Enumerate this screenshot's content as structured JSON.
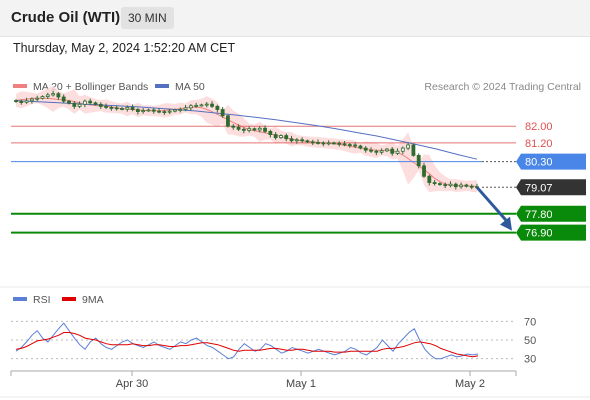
{
  "header": {
    "title": "Crude Oil (WTI)",
    "interval": "30 MIN",
    "datetime": "Thursday, May 2, 2024 1:52:20 AM CET"
  },
  "colors": {
    "bollinger_line": "#f08080",
    "bollinger_fill": "#fdd8d8",
    "ma50": "#5470c0",
    "resistance": "#e05050",
    "pivot": "#4a86e8",
    "current": "#333333",
    "support": "#0a8a0a",
    "arrow": "#2e5a9c",
    "rsi": "#5b7fd6",
    "rsi_ma": "#e00000",
    "bull_candle": "#ffffff",
    "bear_candle": "#2f6b2f"
  },
  "chart_data": [
    {
      "type": "candlestick",
      "legend": [
        "MA 20 + Bollinger Bands",
        "MA 50"
      ],
      "legend_placement": "top-left",
      "credit": "Research © 2024 Trading Central",
      "x_ticks": [
        "Apr 30",
        "May 1",
        "May 2"
      ],
      "levels": [
        {
          "label": "82.00",
          "value": 82.0,
          "kind": "resistance"
        },
        {
          "label": "81.20",
          "value": 81.2,
          "kind": "resistance"
        },
        {
          "label": "80.30",
          "value": 80.3,
          "kind": "pivot"
        },
        {
          "label": "79.07",
          "value": 79.07,
          "kind": "current"
        },
        {
          "label": "77.80",
          "value": 77.8,
          "kind": "support"
        },
        {
          "label": "76.90",
          "value": 76.9,
          "kind": "support"
        }
      ],
      "ylim": [
        76.4,
        83.4
      ],
      "price_series": [
        83.18,
        83.15,
        83.22,
        83.3,
        83.34,
        83.42,
        83.5,
        83.56,
        83.4,
        83.2,
        83.1,
        82.95,
        83.05,
        83.2,
        83.12,
        83.05,
        82.95,
        82.9,
        82.88,
        82.85,
        82.82,
        82.9,
        82.8,
        82.7,
        82.75,
        82.78,
        82.72,
        82.7,
        82.68,
        82.72,
        82.78,
        82.8,
        82.88,
        82.98,
        83.0,
        83.02,
        83.06,
        82.95,
        82.8,
        82.5,
        82.0,
        81.95,
        81.85,
        81.8,
        81.88,
        81.82,
        81.9,
        81.75,
        81.6,
        81.45,
        81.55,
        81.4,
        81.3,
        81.35,
        81.3,
        81.25,
        81.22,
        81.2,
        81.18,
        81.2,
        81.18,
        81.15,
        81.12,
        81.1,
        81.05,
        80.95,
        80.85,
        80.8,
        80.75,
        80.82,
        80.9,
        80.7,
        80.8,
        80.95,
        81.1,
        80.6,
        80.1,
        79.6,
        79.3,
        79.25,
        79.2,
        79.15,
        79.22,
        79.1,
        79.18,
        79.12,
        79.1,
        79.07
      ],
      "ma50": [
        83.22,
        83.18,
        83.13,
        83.08,
        83.03,
        82.98,
        82.93,
        82.87,
        82.8,
        82.73,
        82.63,
        82.53,
        82.42,
        82.3,
        82.17,
        82.03,
        81.87,
        81.7,
        81.53,
        81.33,
        81.12,
        80.9,
        80.65,
        80.42
      ],
      "ma20_band_width": 0.22
    },
    {
      "type": "line",
      "legend": [
        "RSI",
        "9MA"
      ],
      "legend_placement": "top-left",
      "y_ticks": [
        "70",
        "50",
        "30"
      ],
      "ylim": [
        20,
        80
      ],
      "rsi": [
        38,
        42,
        48,
        55,
        60,
        52,
        48,
        55,
        62,
        68,
        60,
        52,
        45,
        40,
        48,
        52,
        46,
        42,
        40,
        44,
        48,
        50,
        46,
        44,
        42,
        45,
        48,
        44,
        42,
        40,
        44,
        48,
        46,
        50,
        52,
        48,
        44,
        42,
        38,
        34,
        30,
        32,
        40,
        46,
        42,
        38,
        40,
        46,
        44,
        40,
        36,
        38,
        42,
        40,
        38,
        36,
        38,
        40,
        38,
        36,
        34,
        36,
        38,
        42,
        40,
        36,
        34,
        38,
        42,
        50,
        44,
        38,
        46,
        52,
        58,
        62,
        50,
        40,
        34,
        30,
        30,
        32,
        34,
        32,
        33,
        35,
        34,
        35
      ],
      "rsi_9ma": [
        40,
        41,
        43,
        46,
        49,
        50,
        51,
        53,
        55,
        58,
        58,
        57,
        55,
        52,
        51,
        50,
        48,
        46,
        45,
        45,
        45,
        45,
        46,
        45,
        44,
        44,
        45,
        45,
        44,
        43,
        43,
        44,
        44,
        45,
        46,
        47,
        47,
        46,
        45,
        43,
        41,
        39,
        38,
        39,
        39,
        39,
        39,
        40,
        41,
        41,
        40,
        39,
        39,
        40,
        40,
        39,
        38,
        38,
        38,
        38,
        37,
        37,
        37,
        38,
        38,
        38,
        38,
        38,
        38,
        40,
        41,
        41,
        42,
        43,
        45,
        47,
        48,
        47,
        46,
        44,
        41,
        39,
        37,
        35,
        34,
        33,
        32,
        33
      ]
    }
  ]
}
